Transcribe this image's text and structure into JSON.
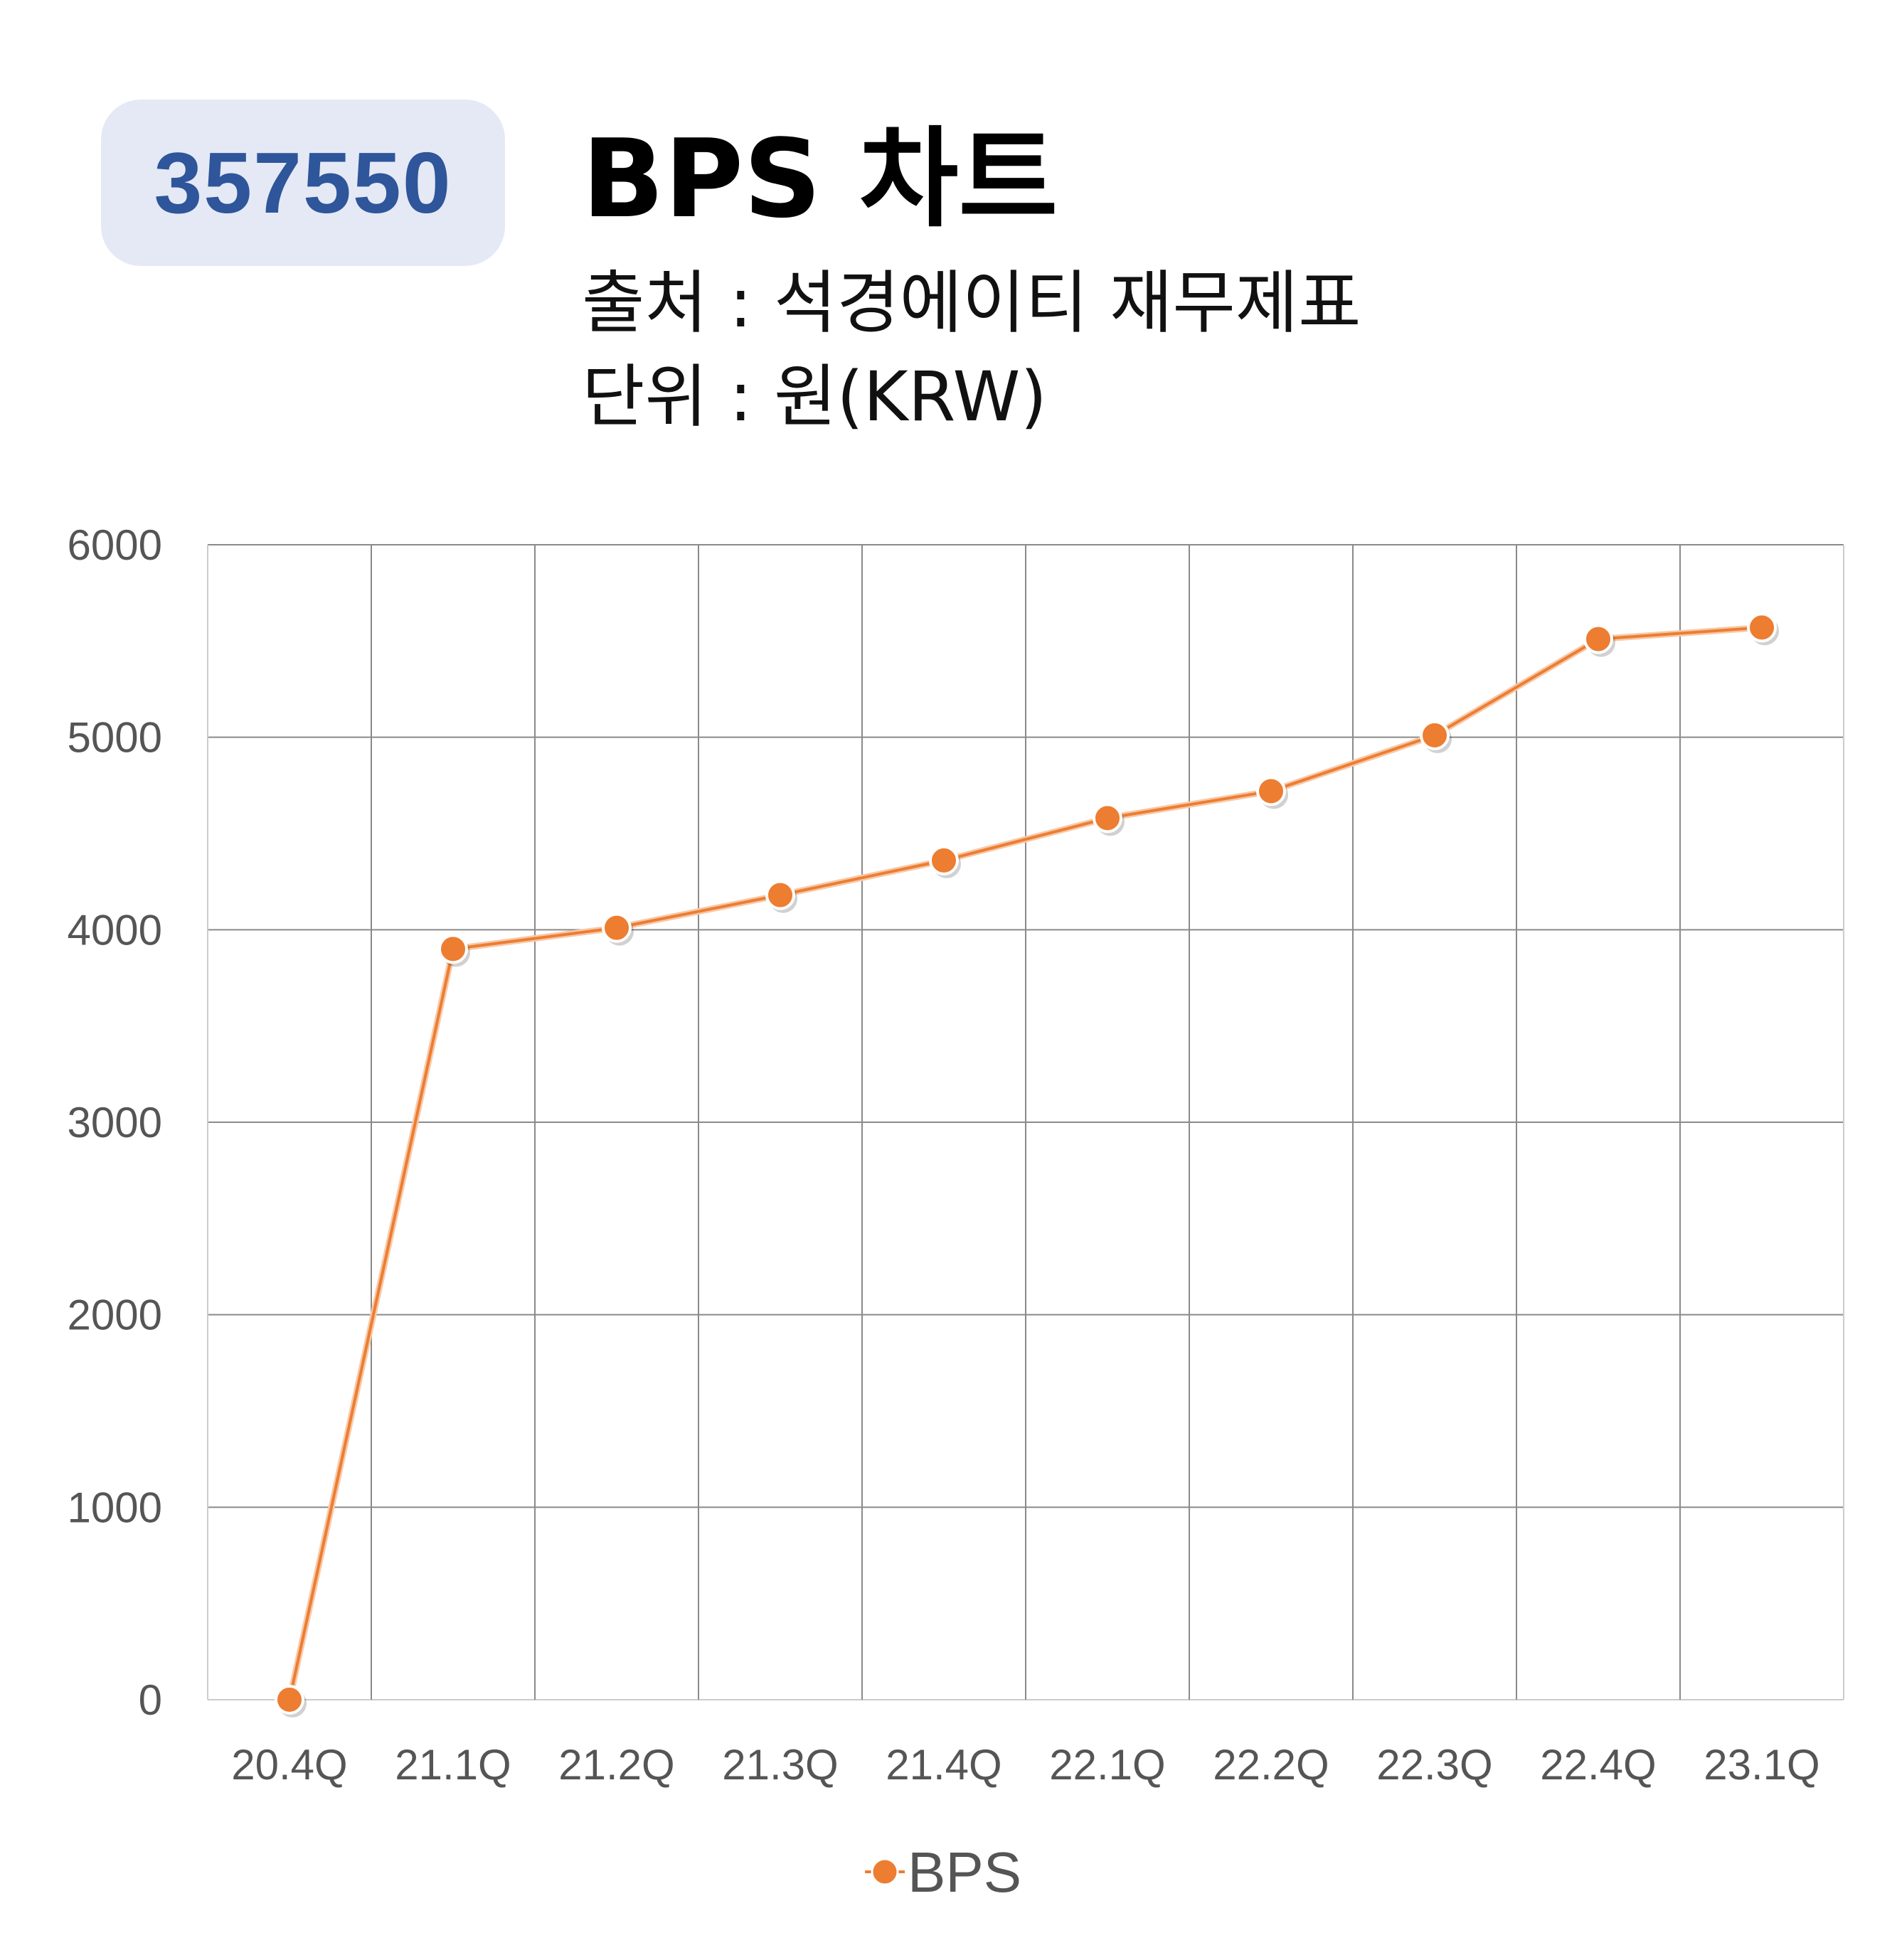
{
  "badge": {
    "code": "357550"
  },
  "header": {
    "title": "BPS 차트",
    "source": "출처 : 석경에이티 재무제표",
    "unit": "단위 : 원(KRW)"
  },
  "colors": {
    "series": "#ed7d31",
    "badge_bg": "#e4e9f5",
    "badge_text": "#2f559a",
    "grid": "#888888"
  },
  "chart_data": {
    "type": "line",
    "categories": [
      "20.4Q",
      "21.1Q",
      "21.2Q",
      "21.3Q",
      "21.4Q",
      "22.1Q",
      "22.2Q",
      "22.3Q",
      "22.4Q",
      "23.1Q"
    ],
    "series": [
      {
        "name": "BPS",
        "values": [
          0,
          3900,
          4010,
          4180,
          4360,
          4580,
          4720,
          5010,
          5510,
          5570
        ]
      }
    ],
    "y_ticks": [
      "0",
      "1000",
      "2000",
      "3000",
      "4000",
      "5000",
      "6000"
    ],
    "ylim": [
      0,
      6000
    ],
    "grid": true,
    "legend": "bottom",
    "markers": true
  }
}
